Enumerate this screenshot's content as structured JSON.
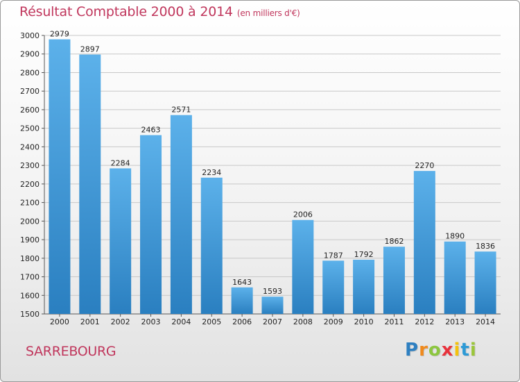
{
  "title": "Résultat Comptable 2000 à 2014",
  "subtitle": "(en milliers d'€)",
  "city": "SARREBOURG",
  "logo": {
    "letters": [
      "P",
      "r",
      "o",
      "x",
      "i",
      "t",
      "i"
    ],
    "colors": [
      "#2d7fc1",
      "#f08a1d",
      "#8cc63f",
      "#e8323c",
      "#f4c20d",
      "#2d9ad6",
      "#9bc63b"
    ]
  },
  "colors": {
    "bar_light": "#5cb1ea",
    "bar_dark": "#2a7fc0",
    "title": "#c0365c",
    "grid": "#c8c8c8"
  },
  "chart_data": {
    "type": "bar",
    "title": "Résultat Comptable 2000 à 2014",
    "xlabel": "",
    "ylabel": "",
    "categories": [
      "2000",
      "2001",
      "2002",
      "2003",
      "2004",
      "2005",
      "2006",
      "2007",
      "2008",
      "2009",
      "2010",
      "2011",
      "2012",
      "2013",
      "2014"
    ],
    "values": [
      2979,
      2897,
      2284,
      2463,
      2571,
      2234,
      1643,
      1593,
      2006,
      1787,
      1792,
      1862,
      2270,
      1890,
      1836
    ],
    "ylim": [
      1500,
      3000
    ],
    "yticks": [
      1500,
      1600,
      1700,
      1800,
      1900,
      2000,
      2100,
      2200,
      2300,
      2400,
      2500,
      2600,
      2700,
      2800,
      2900,
      3000
    ],
    "grid": true
  }
}
